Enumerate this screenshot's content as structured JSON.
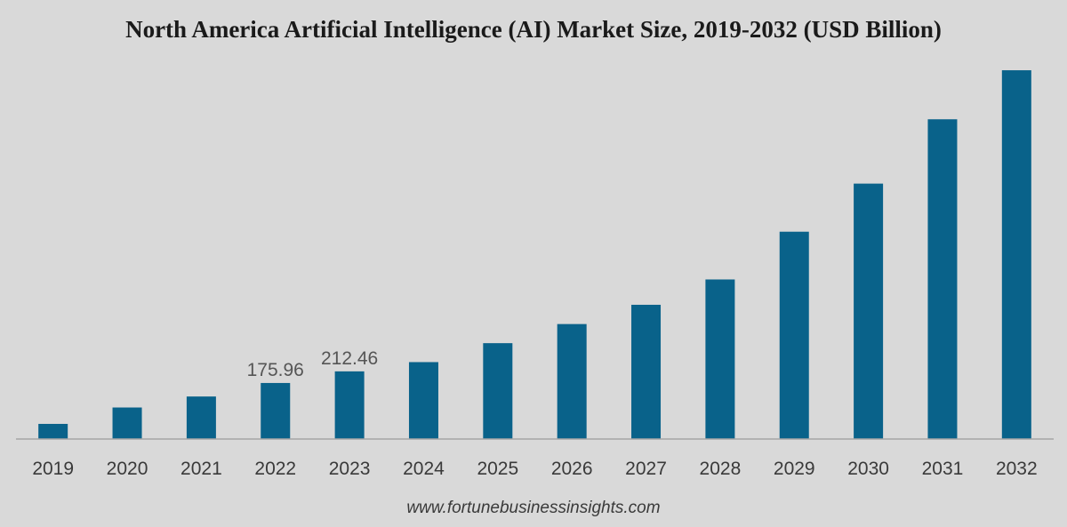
{
  "chart_data": {
    "type": "bar",
    "title": "North America Artificial Intelligence (AI) Market Size, 2019-2032 (USD Billion)",
    "categories": [
      "2019",
      "2020",
      "2021",
      "2022",
      "2023",
      "2024",
      "2025",
      "2026",
      "2027",
      "2028",
      "2029",
      "2030",
      "2031",
      "2032"
    ],
    "values": [
      47.5,
      99,
      133.5,
      175.96,
      212.46,
      241.5,
      301,
      361,
      421.5,
      501,
      651,
      802,
      1004,
      1158
    ],
    "data_labels": {
      "2022": "175.96",
      "2023": "212.46"
    },
    "ylim": [
      0,
      1200
    ],
    "bar_color": "#09628a",
    "axis_color": "#a6a6a6",
    "grid": false,
    "legend": "none"
  },
  "footer": {
    "source": "www.fortunebusinessinsights.com"
  }
}
